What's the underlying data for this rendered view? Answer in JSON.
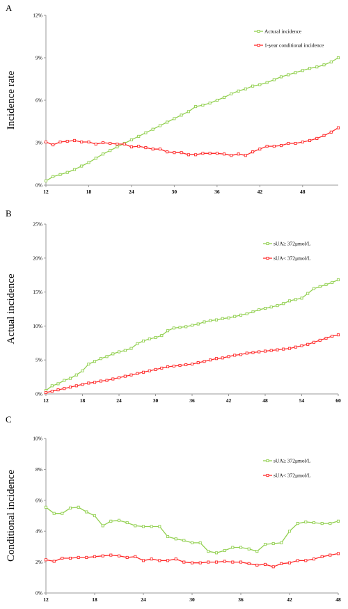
{
  "colors": {
    "green": "#92d050",
    "red": "#ff2a2a",
    "axis": "#999999"
  },
  "chart_data": [
    {
      "panel": "A",
      "type": "line",
      "ylabel": "Incidence rate",
      "xlabel": "",
      "xlim": [
        12,
        53
      ],
      "ylim": [
        0,
        0.12
      ],
      "yticks": [
        0,
        0.03,
        0.06,
        0.09,
        0.12
      ],
      "ytick_labels": [
        "0%",
        "3%",
        "6%",
        "9%",
        "12%"
      ],
      "xticks": [
        12,
        18,
        24,
        30,
        36,
        42,
        48
      ],
      "xtick_labels": [
        "12",
        "18",
        "24",
        "30",
        "36",
        "42",
        "48"
      ],
      "legend_position": "top-right",
      "x": [
        12,
        13,
        14,
        15,
        16,
        17,
        18,
        19,
        20,
        21,
        22,
        23,
        24,
        25,
        26,
        27,
        28,
        29,
        30,
        31,
        32,
        33,
        34,
        35,
        36,
        37,
        38,
        39,
        40,
        41,
        42,
        43,
        44,
        45,
        46,
        47,
        48,
        49,
        50,
        51,
        52,
        53
      ],
      "series": [
        {
          "name": "Actural incidence",
          "color": "#92d050",
          "values": [
            0.003,
            0.006,
            0.0075,
            0.009,
            0.011,
            0.0135,
            0.016,
            0.019,
            0.022,
            0.0245,
            0.027,
            0.0295,
            0.032,
            0.0345,
            0.037,
            0.0395,
            0.042,
            0.0445,
            0.047,
            0.0495,
            0.052,
            0.0555,
            0.0565,
            0.058,
            0.06,
            0.062,
            0.0645,
            0.0665,
            0.068,
            0.07,
            0.071,
            0.0725,
            0.0745,
            0.0765,
            0.078,
            0.0795,
            0.081,
            0.0825,
            0.0835,
            0.085,
            0.087,
            0.09
          ]
        },
        {
          "name": "1-year conditional incidence",
          "color": "#ff2a2a",
          "values": [
            0.0305,
            0.0285,
            0.0305,
            0.031,
            0.0315,
            0.0305,
            0.0305,
            0.029,
            0.03,
            0.0295,
            0.029,
            0.029,
            0.027,
            0.0275,
            0.0265,
            0.0255,
            0.0255,
            0.0235,
            0.023,
            0.023,
            0.0215,
            0.0215,
            0.0225,
            0.0225,
            0.0225,
            0.022,
            0.021,
            0.022,
            0.021,
            0.0235,
            0.0255,
            0.0275,
            0.0275,
            0.028,
            0.0295,
            0.0295,
            0.0305,
            0.0315,
            0.033,
            0.035,
            0.0375,
            0.0405
          ]
        }
      ]
    },
    {
      "panel": "B",
      "type": "line",
      "ylabel": "Actual incidence",
      "xlabel": "",
      "xlim": [
        12,
        60
      ],
      "ylim": [
        0,
        0.25
      ],
      "yticks": [
        0,
        0.05,
        0.1,
        0.15,
        0.2,
        0.25
      ],
      "ytick_labels": [
        "0%",
        "5%",
        "10%",
        "15%",
        "20%",
        "25%"
      ],
      "xticks": [
        12,
        18,
        24,
        30,
        36,
        42,
        48,
        54,
        60
      ],
      "xtick_labels": [
        "12",
        "18",
        "24",
        "30",
        "36",
        "42",
        "48",
        "54",
        "60"
      ],
      "legend_position": "top-right",
      "x": [
        12,
        13,
        14,
        15,
        16,
        17,
        18,
        19,
        20,
        21,
        22,
        23,
        24,
        25,
        26,
        27,
        28,
        29,
        30,
        31,
        32,
        33,
        34,
        35,
        36,
        37,
        38,
        39,
        40,
        41,
        42,
        43,
        44,
        45,
        46,
        47,
        48,
        49,
        50,
        51,
        52,
        53,
        54,
        55,
        56,
        57,
        58,
        59,
        60
      ],
      "series": [
        {
          "name": "sUA≥ 372μmol/L",
          "color": "#92d050",
          "values": [
            0.005,
            0.012,
            0.015,
            0.02,
            0.023,
            0.028,
            0.034,
            0.044,
            0.048,
            0.052,
            0.055,
            0.059,
            0.062,
            0.064,
            0.067,
            0.074,
            0.078,
            0.081,
            0.083,
            0.086,
            0.093,
            0.097,
            0.098,
            0.099,
            0.101,
            0.103,
            0.106,
            0.108,
            0.109,
            0.111,
            0.112,
            0.114,
            0.116,
            0.118,
            0.121,
            0.124,
            0.126,
            0.128,
            0.13,
            0.133,
            0.137,
            0.139,
            0.141,
            0.148,
            0.155,
            0.158,
            0.161,
            0.164,
            0.168
          ]
        },
        {
          "name": "sUA< 372μmol/L",
          "color": "#ff2a2a",
          "values": [
            0.002,
            0.004,
            0.006,
            0.008,
            0.01,
            0.012,
            0.014,
            0.016,
            0.017,
            0.019,
            0.02,
            0.022,
            0.024,
            0.026,
            0.028,
            0.03,
            0.032,
            0.034,
            0.036,
            0.038,
            0.04,
            0.041,
            0.042,
            0.043,
            0.044,
            0.046,
            0.048,
            0.05,
            0.052,
            0.053,
            0.055,
            0.057,
            0.058,
            0.06,
            0.061,
            0.062,
            0.063,
            0.064,
            0.065,
            0.066,
            0.067,
            0.069,
            0.071,
            0.073,
            0.076,
            0.079,
            0.082,
            0.085,
            0.087
          ]
        }
      ]
    },
    {
      "panel": "C",
      "type": "line",
      "ylabel": "Conditional incidence",
      "xlabel": "",
      "xlim": [
        12,
        48
      ],
      "ylim": [
        0,
        0.1
      ],
      "yticks": [
        0,
        0.02,
        0.04,
        0.06,
        0.08,
        0.1
      ],
      "ytick_labels": [
        "0%",
        "2%",
        "4%",
        "6%",
        "8%",
        "10%"
      ],
      "xticks": [
        12,
        18,
        24,
        30,
        36,
        42,
        48
      ],
      "xtick_labels": [
        "12",
        "18",
        "24",
        "30",
        "36",
        "42",
        "48"
      ],
      "legend_position": "top-right",
      "x": [
        12,
        13,
        14,
        15,
        16,
        17,
        18,
        19,
        20,
        21,
        22,
        23,
        24,
        25,
        26,
        27,
        28,
        29,
        30,
        31,
        32,
        33,
        34,
        35,
        36,
        37,
        38,
        39,
        40,
        41,
        42,
        43,
        44,
        45,
        46,
        47,
        48
      ],
      "series": [
        {
          "name": "sUA≥ 372μmol/L",
          "color": "#92d050",
          "values": [
            0.0555,
            0.0515,
            0.0515,
            0.055,
            0.0555,
            0.0525,
            0.05,
            0.0435,
            0.0465,
            0.047,
            0.0455,
            0.0435,
            0.043,
            0.043,
            0.043,
            0.0365,
            0.035,
            0.034,
            0.0325,
            0.0325,
            0.027,
            0.026,
            0.0275,
            0.0295,
            0.0295,
            0.0285,
            0.027,
            0.0315,
            0.032,
            0.0325,
            0.04,
            0.045,
            0.046,
            0.0455,
            0.045,
            0.045,
            0.0465
          ]
        },
        {
          "name": "sUA< 372μmol/L",
          "color": "#ff2a2a",
          "values": [
            0.0215,
            0.0205,
            0.0225,
            0.0225,
            0.023,
            0.023,
            0.0235,
            0.024,
            0.0245,
            0.024,
            0.023,
            0.0235,
            0.021,
            0.022,
            0.021,
            0.021,
            0.022,
            0.02,
            0.0195,
            0.0195,
            0.02,
            0.02,
            0.0205,
            0.02,
            0.02,
            0.019,
            0.018,
            0.0185,
            0.017,
            0.019,
            0.0195,
            0.021,
            0.021,
            0.022,
            0.0235,
            0.0245,
            0.0255
          ]
        }
      ]
    }
  ]
}
